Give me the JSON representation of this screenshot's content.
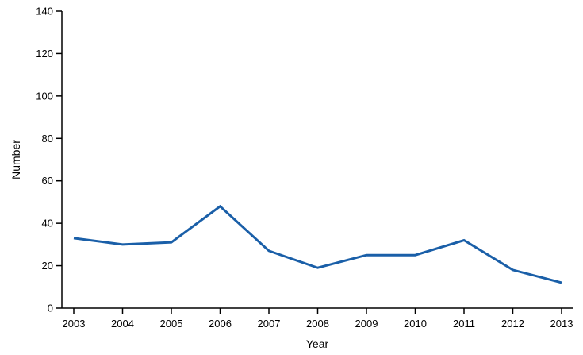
{
  "page": {
    "background": "#ffffff"
  },
  "chart_data": {
    "type": "line",
    "categories": [
      "2003",
      "2004",
      "2005",
      "2006",
      "2007",
      "2008",
      "2009",
      "2010",
      "2011",
      "2012",
      "2013"
    ],
    "values": [
      33,
      30,
      31,
      48,
      27,
      19,
      25,
      25,
      32,
      18,
      12
    ],
    "title": "",
    "xlabel": "Year",
    "ylabel": "Number",
    "ylim": [
      0,
      140
    ],
    "ytick_step": 20,
    "grid": false,
    "legend": "none",
    "line_color": "#1a5fa8",
    "axis_color": "#000000"
  }
}
